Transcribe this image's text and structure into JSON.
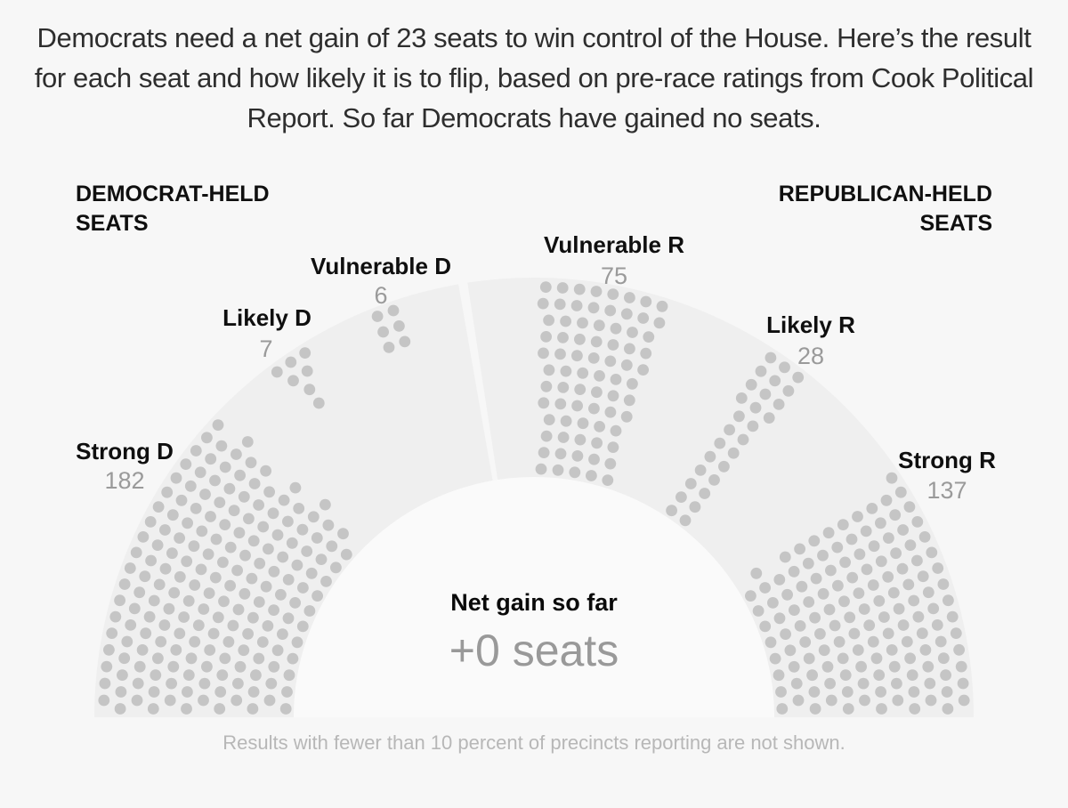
{
  "title": "Democrats need a net gain of 23 seats to win control of the House. Here’s the result for each seat and how likely it is to flip, based on pre-race ratings from Cook Political Report. So far Democrats have gained no seats.",
  "footnote": "Results with fewer than 10 percent of precincts reporting are not shown.",
  "headers": {
    "left": "DEMOCRAT-HELD SEATS",
    "right": "REPUBLICAN-HELD SEATS"
  },
  "center": {
    "label": "Net gain so far",
    "value": "+0 seats"
  },
  "chart_data": {
    "type": "parliament-dot",
    "title": "House seats by pre-race rating",
    "total_seats": 435,
    "net_gain_needed": 23,
    "net_gain_so_far": 0,
    "categories": [
      {
        "id": "strong_d",
        "label": "Strong D",
        "seats": 182
      },
      {
        "id": "likely_d",
        "label": "Likely D",
        "seats": 7
      },
      {
        "id": "vulnerable_d",
        "label": "Vulnerable D",
        "seats": 6
      },
      {
        "id": "vulnerable_r",
        "label": "Vulnerable R",
        "seats": 75
      },
      {
        "id": "likely_r",
        "label": "Likely R",
        "seats": 28
      },
      {
        "id": "strong_r",
        "label": "Strong R",
        "seats": 137
      }
    ],
    "layout_hints": {
      "arc_degrees": 180,
      "rows": 12,
      "background_split_degrees": [
        98.7,
        99.9
      ],
      "wedges": {
        "strong_d": {
          "angles": [
            138.0,
            180.0
          ],
          "fill": "left",
          "row_counts": [
            11,
            12,
            13,
            14,
            14,
            15,
            15,
            16,
            17,
            18,
            18,
            19
          ]
        },
        "likely_d": {
          "angles": [
            121.3,
            127.5
          ],
          "fill": "center",
          "row_counts": [
            0,
            0,
            0,
            0,
            0,
            0,
            0,
            0,
            1,
            1,
            2,
            3
          ]
        },
        "vulnerable_d": {
          "angles": [
            108.4,
            112.0
          ],
          "fill": "center",
          "row_counts": [
            0,
            0,
            0,
            0,
            0,
            0,
            0,
            0,
            0,
            2,
            2,
            2
          ]
        },
        "vulnerable_r": {
          "angles": [
            72.5,
            88.6
          ],
          "fill": "center",
          "row_counts": [
            5,
            5,
            5,
            5,
            6,
            6,
            6,
            7,
            7,
            7,
            8,
            8
          ]
        },
        "likely_r": {
          "angles": [
            51.3,
            57.5
          ],
          "fill": "center",
          "row_counts": [
            2,
            2,
            2,
            2,
            2,
            2,
            2,
            2,
            3,
            3,
            3,
            3
          ]
        },
        "strong_r": {
          "angles": [
            0.0,
            37.0
          ],
          "fill": "right",
          "row_counts": [
            8,
            9,
            9,
            10,
            11,
            11,
            12,
            12,
            13,
            13,
            14,
            15
          ]
        }
      }
    },
    "colors": {
      "dot": "#c5c5c5",
      "arc_background": "#efefef",
      "inner_background": "#fafafa",
      "page_background": "#f7f7f7",
      "category_label": "#0f0f0f",
      "category_number": "#9a9a9a",
      "net_gain_value": "#999999",
      "footnote": "#b7b7b7",
      "title": "#2e2e2e"
    }
  }
}
